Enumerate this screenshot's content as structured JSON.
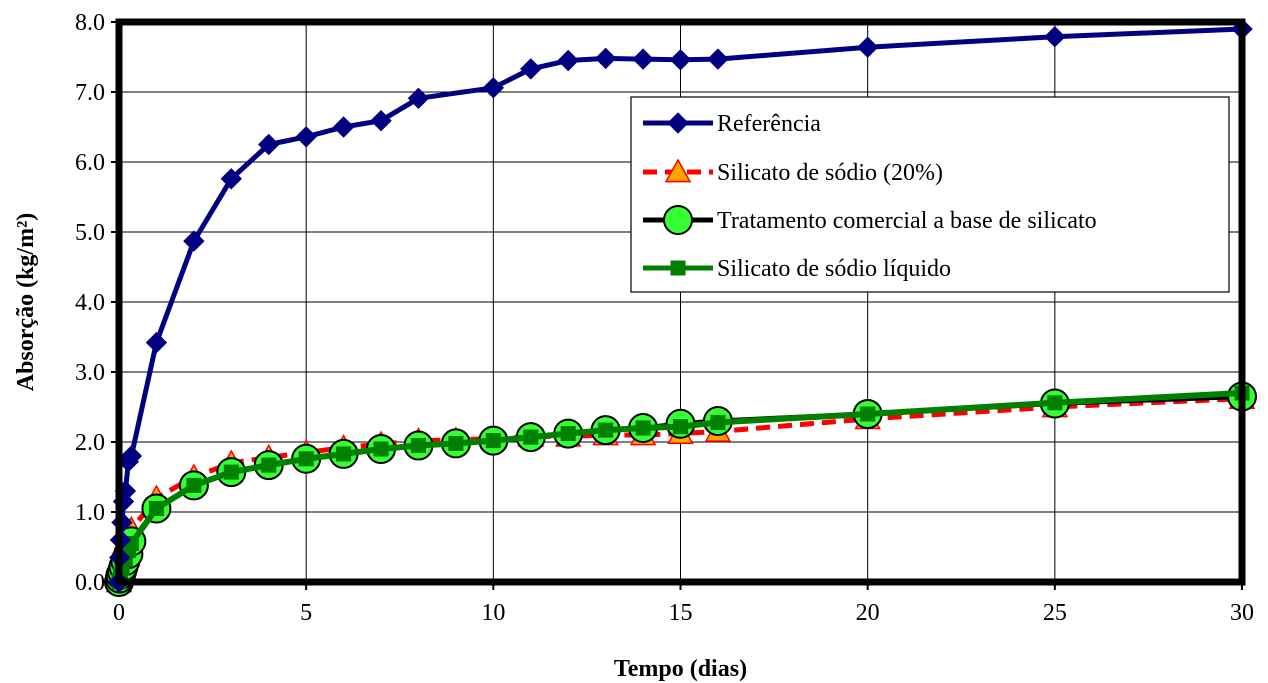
{
  "chart_data": {
    "type": "line",
    "xlabel": "Tempo (dias)",
    "ylabel": "Absorção (kg/m²)",
    "xlim": [
      0,
      30
    ],
    "ylim": [
      0,
      8
    ],
    "x_ticks": [
      "0",
      "5",
      "10",
      "15",
      "20",
      "25",
      "30"
    ],
    "y_ticks": [
      "0.0",
      "1.0",
      "2.0",
      "3.0",
      "4.0",
      "5.0",
      "6.0",
      "7.0",
      "8.0"
    ],
    "grid": true,
    "legend_position": "top-right",
    "series": [
      {
        "name": "Referência",
        "color": "#000080",
        "marker": "diamond",
        "x": [
          0,
          0.02,
          0.04,
          0.08,
          0.12,
          0.17,
          0.25,
          0.33,
          1,
          2,
          3,
          4,
          5,
          6,
          7,
          8,
          10,
          11,
          12,
          13,
          14,
          15,
          16,
          20,
          25,
          30
        ],
        "y": [
          0.0,
          0.35,
          0.6,
          0.85,
          1.15,
          1.3,
          1.72,
          1.8,
          3.42,
          4.87,
          5.76,
          6.25,
          6.36,
          6.5,
          6.59,
          6.91,
          7.06,
          7.33,
          7.45,
          7.48,
          7.47,
          7.46,
          7.47,
          7.64,
          7.79,
          7.9
        ]
      },
      {
        "name": "Silicato de sódio (20%)",
        "color": "#ff0000",
        "marker": "triangle",
        "marker_fill": "#ffa500",
        "x": [
          0,
          0.04,
          0.08,
          0.17,
          0.25,
          0.33,
          1,
          2,
          3,
          4,
          5,
          6,
          7,
          8,
          9,
          10,
          11,
          12,
          13,
          14,
          15,
          16,
          20,
          25,
          30
        ],
        "y": [
          0.0,
          0.2,
          0.35,
          0.55,
          0.65,
          0.75,
          1.2,
          1.5,
          1.7,
          1.78,
          1.85,
          1.92,
          1.97,
          2.02,
          2.03,
          2.05,
          2.08,
          2.08,
          2.1,
          2.1,
          2.12,
          2.15,
          2.33,
          2.5,
          2.62
        ]
      },
      {
        "name": "Tratamento comercial a base de silicato",
        "color": "#000000",
        "marker": "circle",
        "marker_fill": "#33ff33",
        "x": [
          0,
          0.02,
          0.04,
          0.08,
          0.12,
          0.17,
          0.25,
          0.33,
          1,
          2,
          3,
          4,
          5,
          6,
          7,
          8,
          9,
          10,
          11,
          12,
          13,
          14,
          15,
          16,
          20,
          25,
          30
        ],
        "y": [
          0.0,
          0.05,
          0.1,
          0.15,
          0.22,
          0.3,
          0.4,
          0.58,
          1.05,
          1.38,
          1.57,
          1.67,
          1.76,
          1.83,
          1.9,
          1.95,
          1.98,
          2.02,
          2.07,
          2.12,
          2.17,
          2.2,
          2.26,
          2.3,
          2.4,
          2.55,
          2.65
        ]
      },
      {
        "name": "Silicato de sódio líquido",
        "color": "#008000",
        "marker": "square",
        "x": [
          0,
          0.04,
          0.08,
          0.17,
          0.25,
          0.33,
          1,
          2,
          3,
          4,
          5,
          6,
          7,
          8,
          9,
          10,
          11,
          12,
          13,
          14,
          15,
          16,
          20,
          25,
          30
        ],
        "y": [
          0.0,
          0.1,
          0.2,
          0.32,
          0.45,
          0.55,
          1.05,
          1.38,
          1.57,
          1.67,
          1.76,
          1.83,
          1.9,
          1.95,
          1.98,
          2.02,
          2.07,
          2.12,
          2.17,
          2.2,
          2.22,
          2.28,
          2.4,
          2.56,
          2.7
        ]
      }
    ]
  }
}
